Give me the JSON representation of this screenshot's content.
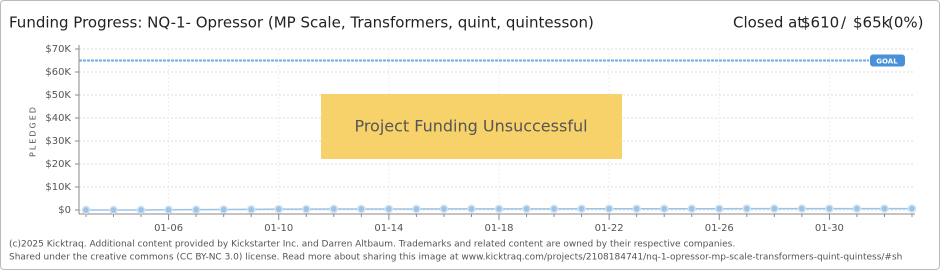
{
  "chart_data": {
    "type": "line",
    "title": "Funding Progress: NQ-1- Opressor (MP Scale, Transformers, quint, quintesson)",
    "closed_label": "Closed at:",
    "pledged": "$610",
    "separator": "/",
    "goal_text": "$65k",
    "percent": "(0%)",
    "y_label": "PLEDGED",
    "status": "Project Funding Unsuccessful",
    "categories": [
      null,
      null,
      null,
      "01-06",
      null,
      null,
      null,
      "01-10",
      null,
      null,
      null,
      "01-14",
      null,
      null,
      null,
      "01-18",
      null,
      null,
      null,
      "01-22",
      null,
      null,
      null,
      "01-26",
      null,
      null,
      null,
      "01-30",
      null,
      null,
      null
    ],
    "series": [
      {
        "name": "Pledged",
        "color": "#9dc3e6",
        "values": [
          0,
          0,
          0,
          100,
          150,
          200,
          250,
          400,
          400,
          450,
          450,
          450,
          450,
          500,
          500,
          500,
          500,
          500,
          550,
          550,
          550,
          550,
          550,
          550,
          600,
          600,
          600,
          600,
          610,
          610,
          610
        ]
      }
    ],
    "goal": {
      "value": 65000,
      "label": "GOAL"
    },
    "ylim": [
      0,
      70000
    ],
    "yticks": [
      {
        "value": 0,
        "label": "$0"
      },
      {
        "value": 10000,
        "label": "$10K"
      },
      {
        "value": 20000,
        "label": "$20K"
      },
      {
        "value": 30000,
        "label": "$30K"
      },
      {
        "value": 40000,
        "label": "$40K"
      },
      {
        "value": 50000,
        "label": "$50K"
      },
      {
        "value": 60000,
        "label": "$60K"
      },
      {
        "value": 70000,
        "label": "$70K"
      }
    ],
    "grid": true,
    "footer": [
      "(c)2025 Kicktraq. Additional content provided by Kickstarter Inc. and Darren Altbaum. Trademarks and related content are owned by their respective companies.",
      "Shared under the creative commons (CC BY-NC 3.0) license. Read more about sharing this image at www.kicktraq.com/projects/2108184741/nq-1-opressor-mp-scale-transformers-quint-quintess/#sh"
    ]
  }
}
